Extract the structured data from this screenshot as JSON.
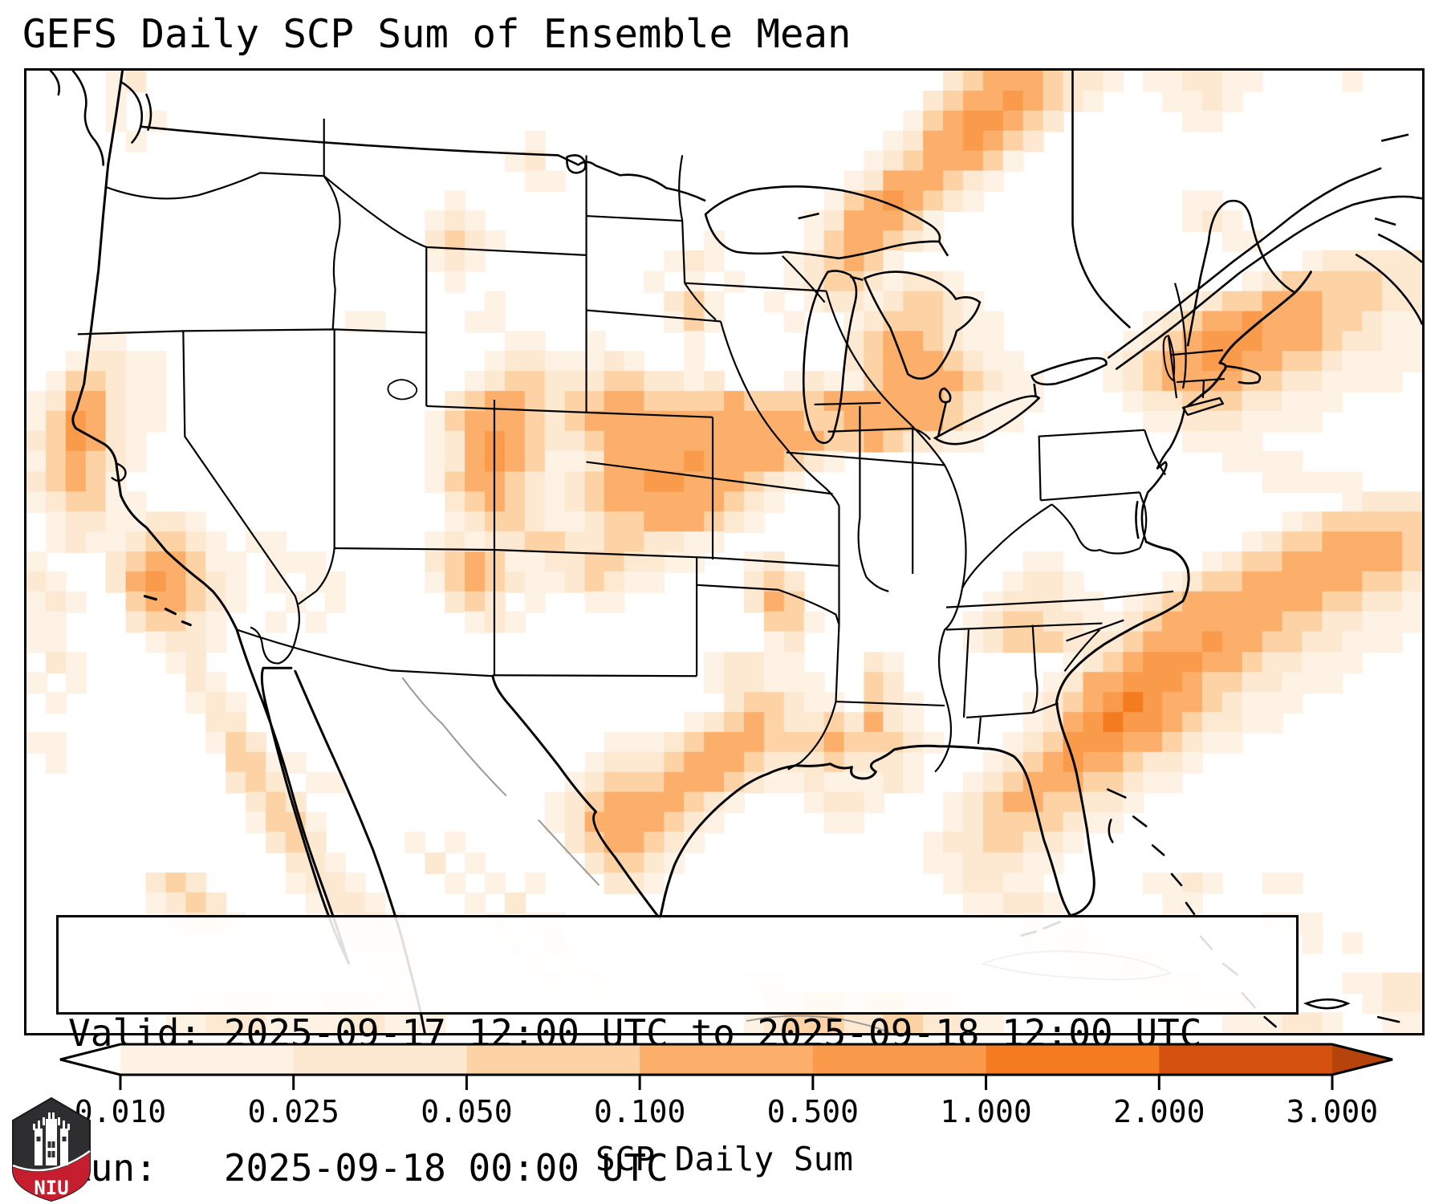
{
  "title": "GEFS Daily SCP Sum of Ensemble Mean",
  "info_box": {
    "valid_line": "Valid: 2025-09-17 12:00 UTC to 2025-09-18 12:00 UTC",
    "run_line": "Run:   2025-09-18 00:00 UTC"
  },
  "logo": {
    "text": "NIU",
    "shield_dark": "#2e2d30",
    "shield_red": "#c41e2f"
  },
  "chart_data": {
    "type": "heatmap",
    "title": "GEFS Daily SCP Sum of Ensemble Mean",
    "valid_period": "2025-09-17 12:00 UTC to 2025-09-18 12:00 UTC",
    "run_time": "2025-09-18 00:00 UTC",
    "variable": "SCP Daily Sum",
    "colorbar": {
      "label": "SCP Daily Sum",
      "tick_labels": [
        "0.010",
        "0.025",
        "0.050",
        "0.100",
        "0.500",
        "1.000",
        "2.000",
        "3.000"
      ],
      "tick_values": [
        0.01,
        0.025,
        0.05,
        0.1,
        0.5,
        1.0,
        2.0,
        3.0
      ],
      "segment_colors": [
        "#fdf2e4",
        "#fde8d1",
        "#fdd3a6",
        "#fcae6b",
        "#f99b4a",
        "#f57b20",
        "#d4510e"
      ],
      "under_color": "#ffffff",
      "over_color": "#b5430b",
      "orientation": "horizontal",
      "extend": "both"
    },
    "heatmap": {
      "cols": 70,
      "rows": 48,
      "legend": "chars '1'-'7' = colorbar segments low to high, '.' = below 0.010",
      "grid": [
        "....12........................................234443221.112211....1...",
        "....1........................................234454321...1121.........",
        "....1.1.....................................13455432......11..........",
        ".....1...................1.................12445432...................",
        "........................12................12344431....................",
        ".........................11..............12444321.....................",
        ".....................1..................13454321..........11..........",
        "....................121................1244431............121.........",
        "....................2321..........1....1344321..............11........",
        "....................121.........121...123431....................122222",
        ".....................1.........1.1.1..123321221..............123333322",
        ".......................1........231..1.122123321..........123344433322",
        "................11....11........131...1..12333211.......12344544433211",
        "...11...................11..1....1.......23443211......123455544432211",
        "..12211................12211121..1.......234443211....1234455443321111",
        ".133211...............1233222332212...1211344443211...123444433221111.",
        "1244211..............234432334433334333344444432111....12233322111....",
        "1354211.............134443234444444444433444443211......112221111.....",
        "235421..............1245432234444444444433432211..........1111........",
        "134321..............124543112444454444321...................1111......",
        "23431...............1344321234455444321.......................11111...",
        "123311...............23432123444444321............................1222",
        ".12211221............1233211233444321..........................1233333",
        ".121123321.11.......121223322332211..........................123344443",
        "1...2344311.111.....23431122332211..12............11.......12334444443",
        "21..2454321.1.11....134321123211....232..........1221....1233444444332",
        "121..344321..1.1.....232.1..11......243.........122211.123444444433221",
        "11...23321..1.1.......121............331.......12332211234444443322111",
        "11....1221...........................12........1233322234445443322111.",
        ".21....12.........................12211...21........123455544322111...",
        "1.1.....21........................122111..32.......124455543322111....",
        ".1......121........................233211.321.....12345654432111......",
        ".........22......................123432232421.....1245655432211.......",
        "11.......132.................11123444333433321...123555443211.........",
        ".1........3311..............12223444322232221...12345443221...........",
        "..........232.11...........123334443211211121..12344433211............",
        "...........232............1234444321...1221...1234433221..............",
        "...........1331...........124444321.....11....123333211...............",
        "............232....1.1.....2344321...........12233221.................",
        ".............221....2.1.....23321............1122211..................",
        "......232....1221....1.1.1...221..............12211.....1121..11......",
        "......1232....1221....1.2......................11221.....11...........",
        ".......1221....1221....1.11.....................1.1.1.........111.....",
        "................1221....1.2.......................1121..........1.1...",
        ".................111.....1.1........................11121.............",
        "..................1.......1.1.......11.................1111.......1122",
        "........112211122111.................2233233221...........1111.....122",
        ".......11222111122111...............1233322332211...........111221..11"
      ]
    }
  }
}
